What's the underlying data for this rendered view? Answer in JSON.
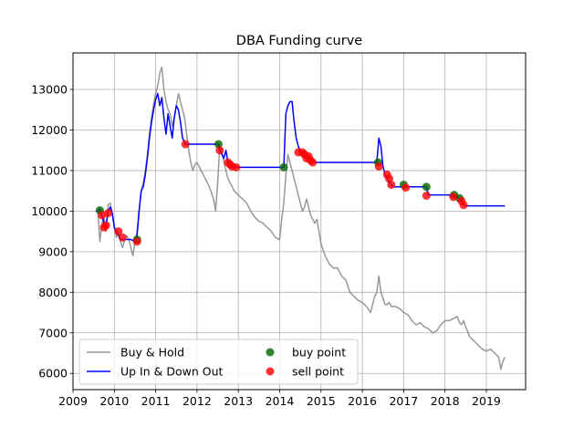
{
  "chart_data": {
    "type": "line",
    "title": "DBA Funding curve",
    "xlabel": "",
    "ylabel": "",
    "xlim": [
      2009.0,
      2019.95
    ],
    "ylim": [
      5600,
      13900
    ],
    "x_ticks": [
      2009,
      2010,
      2011,
      2012,
      2013,
      2014,
      2015,
      2016,
      2017,
      2018,
      2019
    ],
    "y_ticks": [
      6000,
      7000,
      8000,
      9000,
      10000,
      11000,
      12000,
      13000
    ],
    "grid": true,
    "legend_position": "lower-left",
    "series": [
      {
        "name": "Buy & Hold",
        "kind": "line",
        "color": "#808080",
        "opacity": 0.8,
        "x": [
          2009.6,
          2009.65,
          2009.7,
          2009.75,
          2009.8,
          2009.85,
          2009.9,
          2009.95,
          2010.0,
          2010.05,
          2010.1,
          2010.15,
          2010.2,
          2010.25,
          2010.3,
          2010.35,
          2010.4,
          2010.45,
          2010.5,
          2010.55,
          2010.6,
          2010.65,
          2010.7,
          2010.75,
          2010.8,
          2010.85,
          2010.9,
          2010.95,
          2011.0,
          2011.05,
          2011.1,
          2011.15,
          2011.2,
          2011.25,
          2011.3,
          2011.35,
          2011.4,
          2011.45,
          2011.5,
          2011.55,
          2011.6,
          2011.65,
          2011.7,
          2011.75,
          2011.8,
          2011.85,
          2011.9,
          2011.95,
          2012.0,
          2012.1,
          2012.2,
          2012.3,
          2012.4,
          2012.45,
          2012.5,
          2012.55,
          2012.6,
          2012.65,
          2012.7,
          2012.75,
          2012.8,
          2012.85,
          2012.9,
          2013.0,
          2013.1,
          2013.2,
          2013.3,
          2013.4,
          2013.5,
          2013.6,
          2013.7,
          2013.8,
          2013.9,
          2014.0,
          2014.05,
          2014.1,
          2014.15,
          2014.2,
          2014.25,
          2014.3,
          2014.35,
          2014.4,
          2014.45,
          2014.5,
          2014.55,
          2014.6,
          2014.65,
          2014.7,
          2014.75,
          2014.8,
          2014.85,
          2014.9,
          2014.95,
          2015.0,
          2015.1,
          2015.2,
          2015.3,
          2015.4,
          2015.5,
          2015.6,
          2015.7,
          2015.8,
          2015.9,
          2016.0,
          2016.1,
          2016.2,
          2016.3,
          2016.35,
          2016.4,
          2016.45,
          2016.5,
          2016.55,
          2016.6,
          2016.65,
          2016.7,
          2016.8,
          2016.9,
          2017.0,
          2017.1,
          2017.2,
          2017.3,
          2017.4,
          2017.5,
          2017.6,
          2017.7,
          2017.8,
          2017.9,
          2018.0,
          2018.1,
          2018.2,
          2018.3,
          2018.35,
          2018.4,
          2018.45,
          2018.5,
          2018.6,
          2018.7,
          2018.8,
          2018.9,
          2019.0,
          2019.1,
          2019.2,
          2019.3,
          2019.35,
          2019.4,
          2019.45
        ],
        "y": [
          10000,
          9250,
          9700,
          9850,
          9500,
          10150,
          10200,
          9950,
          9600,
          9350,
          9500,
          9250,
          9100,
          9300,
          9400,
          9300,
          9100,
          8900,
          9250,
          9500,
          10050,
          10500,
          10700,
          11000,
          11400,
          11900,
          12300,
          12650,
          12900,
          13100,
          13400,
          13550,
          13000,
          12700,
          12500,
          12400,
          12100,
          12300,
          12600,
          12900,
          12700,
          12500,
          12300,
          11900,
          11500,
          11200,
          11000,
          11150,
          11200,
          11000,
          10800,
          10600,
          10300,
          10000,
          10700,
          11600,
          11500,
          11200,
          11000,
          10800,
          10700,
          10600,
          10500,
          10400,
          10300,
          10200,
          10000,
          9850,
          9750,
          9700,
          9600,
          9500,
          9350,
          9300,
          9800,
          10200,
          10900,
          11400,
          11200,
          11000,
          10800,
          10600,
          10400,
          10200,
          10000,
          10100,
          10300,
          10100,
          9900,
          9800,
          9700,
          9800,
          9500,
          9200,
          8900,
          8700,
          8600,
          8600,
          8400,
          8300,
          8000,
          7900,
          7800,
          7750,
          7650,
          7500,
          7900,
          8000,
          8400,
          8000,
          7850,
          7700,
          7700,
          7750,
          7650,
          7650,
          7600,
          7500,
          7450,
          7300,
          7200,
          7250,
          7150,
          7100,
          7000,
          7050,
          7200,
          7300,
          7300,
          7350,
          7400,
          7250,
          7200,
          7300,
          7150,
          6900,
          6800,
          6700,
          6600,
          6550,
          6600,
          6500,
          6400,
          6100,
          6300,
          6400
        ]
      },
      {
        "name": "Up In & Down Out",
        "kind": "line",
        "color": "#0000ff",
        "x": [
          2009.55,
          2009.6,
          2009.65,
          2009.7,
          2009.75,
          2009.8,
          2009.85,
          2009.9,
          2009.95,
          2010.0,
          2010.05,
          2010.1,
          2010.15,
          2010.2,
          2010.3,
          2010.4,
          2010.5,
          2010.55,
          2010.6,
          2010.65,
          2010.7,
          2010.75,
          2010.8,
          2010.85,
          2010.9,
          2010.95,
          2011.0,
          2011.05,
          2011.1,
          2011.15,
          2011.2,
          2011.25,
          2011.3,
          2011.35,
          2011.4,
          2011.45,
          2011.5,
          2011.55,
          2011.6,
          2011.65,
          2011.7,
          2011.72,
          2012.0,
          2012.25,
          2012.52,
          2012.55,
          2012.6,
          2012.65,
          2012.7,
          2012.75,
          2012.8,
          2012.85,
          2012.9,
          2012.95,
          2013.5,
          2014.1,
          2014.15,
          2014.2,
          2014.25,
          2014.3,
          2014.35,
          2014.4,
          2014.45,
          2014.5,
          2014.55,
          2014.6,
          2014.65,
          2014.7,
          2014.75,
          2014.8,
          2014.85,
          2015.0,
          2015.5,
          2016.0,
          2016.35,
          2016.4,
          2016.45,
          2016.5,
          2016.55,
          2016.6,
          2016.65,
          2016.7,
          2016.75,
          2017.0,
          2017.05,
          2017.1,
          2017.55,
          2017.6,
          2017.8,
          2018.0,
          2018.2,
          2018.25,
          2018.3,
          2018.35,
          2018.4,
          2018.45,
          2018.5,
          2018.7,
          2019.0,
          2019.3,
          2019.45
        ],
        "y": [
          10000,
          10000,
          10050,
          9900,
          9700,
          9650,
          10000,
          10100,
          9950,
          9600,
          9500,
          9400,
          9300,
          9300,
          9300,
          9300,
          9250,
          9400,
          10000,
          10500,
          10600,
          10900,
          11300,
          11800,
          12200,
          12500,
          12750,
          12900,
          12600,
          12800,
          12300,
          11900,
          12400,
          12100,
          11800,
          12300,
          12600,
          12500,
          12200,
          11800,
          11700,
          11650,
          11650,
          11650,
          11650,
          11500,
          11400,
          11300,
          11500,
          11200,
          11100,
          11100,
          11100,
          11080,
          11080,
          11080,
          12400,
          12600,
          12700,
          12700,
          12200,
          11800,
          11600,
          11500,
          11450,
          11400,
          11300,
          11350,
          11250,
          11200,
          11200,
          11200,
          11200,
          11200,
          11200,
          11800,
          11600,
          11100,
          10900,
          10850,
          10700,
          10650,
          10600,
          10600,
          10600,
          10600,
          10600,
          10400,
          10400,
          10400,
          10400,
          10350,
          10350,
          10300,
          10250,
          10150,
          10130,
          10130,
          10130,
          10130,
          10130
        ]
      },
      {
        "name": "buy point",
        "kind": "scatter",
        "color": "#006400",
        "x": [
          2009.65,
          2010.55,
          2012.52,
          2014.1,
          2016.38,
          2017.0,
          2017.55,
          2018.22,
          2018.35
        ],
        "y": [
          10020,
          9300,
          11650,
          11080,
          11200,
          10650,
          10600,
          10400,
          10320
        ]
      },
      {
        "name": "sell point",
        "kind": "scatter",
        "color": "#ff0000",
        "x": [
          2009.7,
          2009.75,
          2009.8,
          2009.85,
          2010.1,
          2010.2,
          2010.55,
          2011.72,
          2012.55,
          2012.75,
          2012.8,
          2012.85,
          2012.95,
          2014.45,
          2014.55,
          2014.6,
          2014.65,
          2014.7,
          2014.75,
          2014.8,
          2016.4,
          2016.6,
          2016.65,
          2016.7,
          2017.05,
          2017.55,
          2018.2,
          2018.4,
          2018.45
        ],
        "y": [
          9900,
          9600,
          9650,
          9950,
          9500,
          9350,
          9250,
          11650,
          11500,
          11200,
          11150,
          11100,
          11080,
          11450,
          11450,
          11400,
          11300,
          11350,
          11250,
          11200,
          11100,
          10900,
          10800,
          10650,
          10580,
          10380,
          10350,
          10250,
          10150
        ]
      }
    ]
  }
}
